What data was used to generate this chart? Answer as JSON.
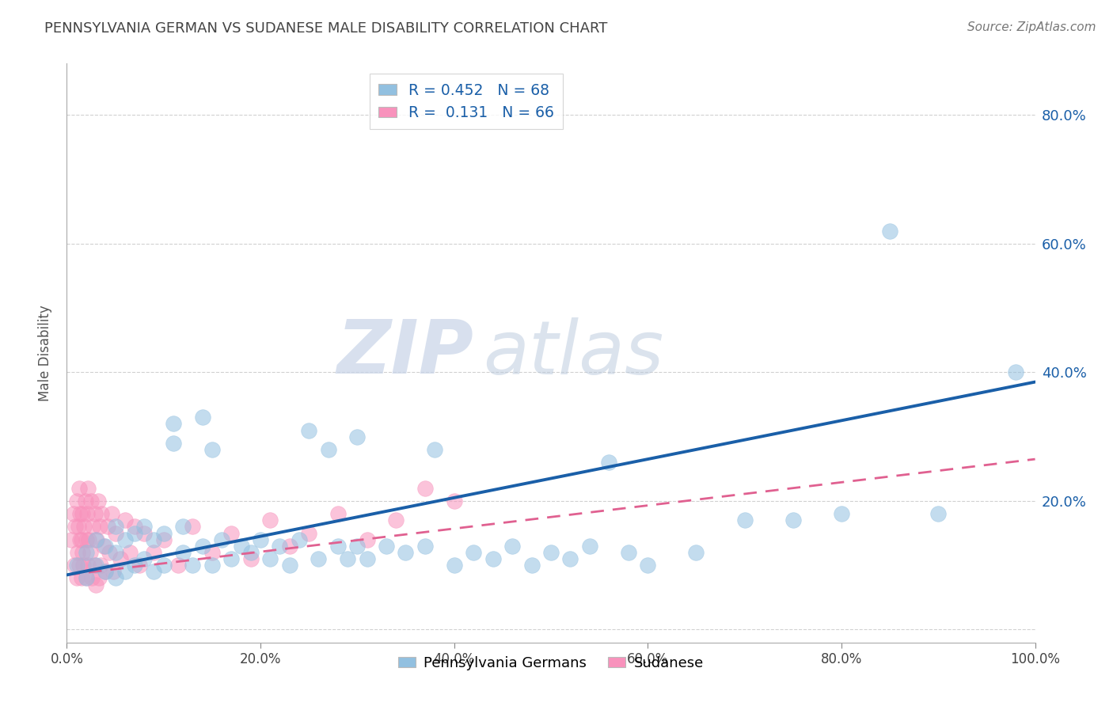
{
  "title": "PENNSYLVANIA GERMAN VS SUDANESE MALE DISABILITY CORRELATION CHART",
  "source_text": "Source: ZipAtlas.com",
  "ylabel": "Male Disability",
  "xlim": [
    0.0,
    1.0
  ],
  "ylim": [
    -0.02,
    0.88
  ],
  "yticks": [
    0.0,
    0.2,
    0.4,
    0.6,
    0.8
  ],
  "xticks": [
    0.0,
    0.2,
    0.4,
    0.6,
    0.8,
    1.0
  ],
  "xtick_labels": [
    "0.0%",
    "20.0%",
    "40.0%",
    "60.0%",
    "80.0%",
    "100.0%"
  ],
  "right_ytick_labels": [
    "20.0%",
    "40.0%",
    "60.0%",
    "80.0%"
  ],
  "blue_color": "#92c0e0",
  "pink_color": "#f892bc",
  "blue_line_color": "#1a5fa8",
  "pink_line_color": "#e06090",
  "blue_R": 0.452,
  "blue_N": 68,
  "pink_R": 0.131,
  "pink_N": 66,
  "watermark_zip": "ZIP",
  "watermark_atlas": "atlas",
  "background_color": "#ffffff",
  "grid_color": "#cccccc",
  "blue_scatter_x": [
    0.01,
    0.02,
    0.02,
    0.03,
    0.03,
    0.04,
    0.04,
    0.05,
    0.05,
    0.05,
    0.06,
    0.06,
    0.07,
    0.07,
    0.08,
    0.08,
    0.09,
    0.09,
    0.1,
    0.1,
    0.11,
    0.11,
    0.12,
    0.12,
    0.13,
    0.14,
    0.14,
    0.15,
    0.15,
    0.16,
    0.17,
    0.18,
    0.19,
    0.2,
    0.21,
    0.22,
    0.23,
    0.24,
    0.25,
    0.26,
    0.27,
    0.28,
    0.29,
    0.3,
    0.3,
    0.31,
    0.33,
    0.35,
    0.37,
    0.38,
    0.4,
    0.42,
    0.44,
    0.46,
    0.48,
    0.5,
    0.52,
    0.54,
    0.56,
    0.58,
    0.6,
    0.65,
    0.7,
    0.75,
    0.8,
    0.85,
    0.9,
    0.98
  ],
  "blue_scatter_y": [
    0.1,
    0.08,
    0.12,
    0.1,
    0.14,
    0.09,
    0.13,
    0.08,
    0.12,
    0.16,
    0.09,
    0.14,
    0.1,
    0.15,
    0.11,
    0.16,
    0.09,
    0.14,
    0.1,
    0.15,
    0.32,
    0.29,
    0.12,
    0.16,
    0.1,
    0.33,
    0.13,
    0.28,
    0.1,
    0.14,
    0.11,
    0.13,
    0.12,
    0.14,
    0.11,
    0.13,
    0.1,
    0.14,
    0.31,
    0.11,
    0.28,
    0.13,
    0.11,
    0.13,
    0.3,
    0.11,
    0.13,
    0.12,
    0.13,
    0.28,
    0.1,
    0.12,
    0.11,
    0.13,
    0.1,
    0.12,
    0.11,
    0.13,
    0.26,
    0.12,
    0.1,
    0.12,
    0.17,
    0.17,
    0.18,
    0.62,
    0.18,
    0.4
  ],
  "pink_scatter_x": [
    0.005,
    0.007,
    0.008,
    0.009,
    0.01,
    0.01,
    0.011,
    0.012,
    0.013,
    0.013,
    0.014,
    0.014,
    0.015,
    0.015,
    0.016,
    0.016,
    0.017,
    0.018,
    0.019,
    0.02,
    0.02,
    0.021,
    0.022,
    0.022,
    0.023,
    0.024,
    0.025,
    0.026,
    0.027,
    0.028,
    0.029,
    0.03,
    0.031,
    0.032,
    0.033,
    0.034,
    0.035,
    0.036,
    0.038,
    0.04,
    0.042,
    0.044,
    0.046,
    0.048,
    0.05,
    0.055,
    0.06,
    0.065,
    0.07,
    0.075,
    0.08,
    0.09,
    0.1,
    0.115,
    0.13,
    0.15,
    0.17,
    0.19,
    0.21,
    0.23,
    0.25,
    0.28,
    0.31,
    0.34,
    0.37,
    0.4
  ],
  "pink_scatter_y": [
    0.14,
    0.18,
    0.1,
    0.16,
    0.08,
    0.2,
    0.12,
    0.16,
    0.1,
    0.22,
    0.14,
    0.18,
    0.08,
    0.14,
    0.12,
    0.18,
    0.1,
    0.16,
    0.2,
    0.08,
    0.14,
    0.18,
    0.1,
    0.22,
    0.14,
    0.12,
    0.2,
    0.08,
    0.16,
    0.1,
    0.18,
    0.07,
    0.14,
    0.2,
    0.08,
    0.16,
    0.1,
    0.18,
    0.13,
    0.09,
    0.16,
    0.12,
    0.18,
    0.09,
    0.15,
    0.11,
    0.17,
    0.12,
    0.16,
    0.1,
    0.15,
    0.12,
    0.14,
    0.1,
    0.16,
    0.12,
    0.15,
    0.11,
    0.17,
    0.13,
    0.15,
    0.18,
    0.14,
    0.17,
    0.22,
    0.2
  ]
}
